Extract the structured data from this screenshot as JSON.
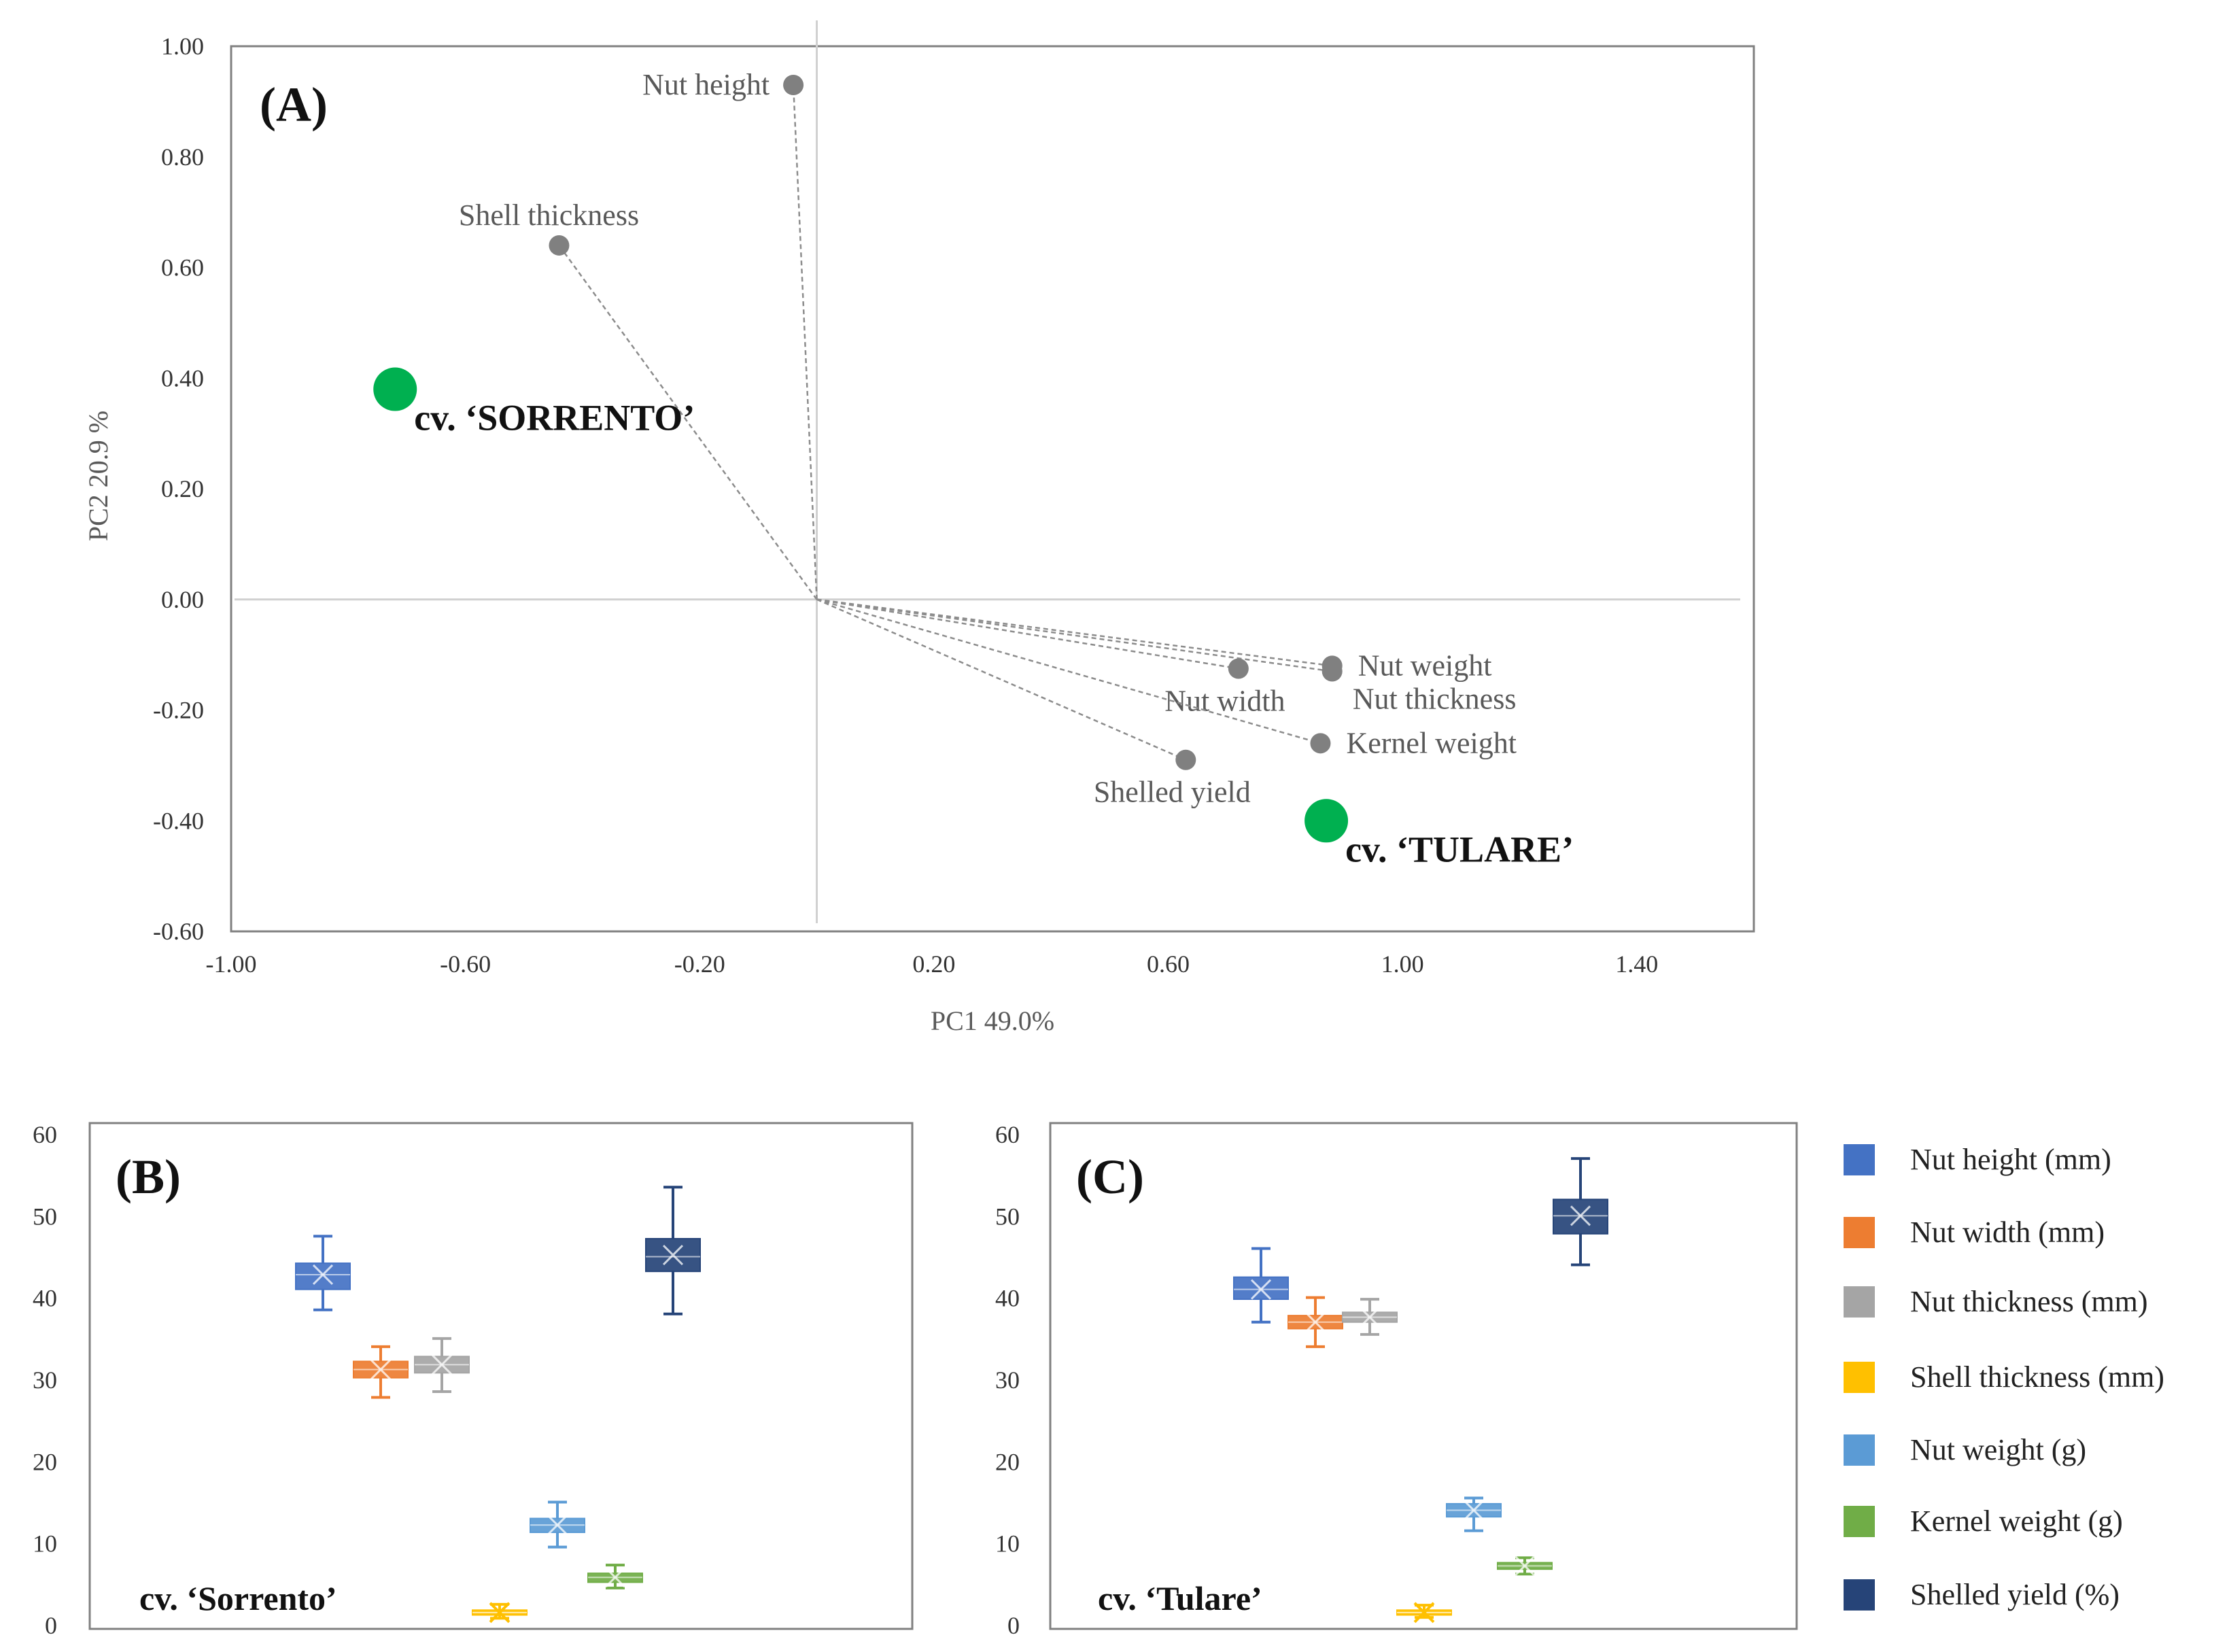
{
  "colors": {
    "nut_height": "#4472C4",
    "nut_width": "#ED7D31",
    "nut_thickness": "#A5A5A5",
    "shell_thickness": "#FFC000",
    "nut_weight": "#5B9BD5",
    "kernel_weight": "#70AD47",
    "shelled_yield": "#264478",
    "cultivar_point": "#00B050",
    "loading_point": "#808080"
  },
  "chart_data": [
    {
      "panel": "(A)",
      "type": "scatter",
      "subtype": "PCA biplot",
      "xlabel": "PC1 49.0%",
      "ylabel": "PC2 20.9 %",
      "xlim": [
        -1.0,
        1.6
      ],
      "ylim": [
        -0.6,
        1.0
      ],
      "x_ticks": [
        "-1.00",
        "-0.60",
        "-0.20",
        "0.20",
        "0.60",
        "1.00",
        "1.40"
      ],
      "y_ticks": [
        "1.00",
        "0.80",
        "0.60",
        "0.40",
        "0.20",
        "0.00",
        "-0.20",
        "-0.40",
        "-0.60"
      ],
      "grid": false,
      "loadings": [
        {
          "name": "Nut height",
          "x": -0.04,
          "y": 0.93,
          "label_pos": "left"
        },
        {
          "name": "Shell thickness",
          "x": -0.44,
          "y": 0.64,
          "label_pos": "above"
        },
        {
          "name": "Nut weight",
          "x": 0.88,
          "y": -0.12,
          "label_pos": "right"
        },
        {
          "name": "Nut thickness",
          "x": 0.88,
          "y": -0.13,
          "label_pos": "right-below"
        },
        {
          "name": "Nut width",
          "x": 0.72,
          "y": -0.125,
          "label_pos": "below"
        },
        {
          "name": "Kernel weight",
          "x": 0.86,
          "y": -0.26,
          "label_pos": "right"
        },
        {
          "name": "Shelled yield",
          "x": 0.63,
          "y": -0.29,
          "label_pos": "below"
        }
      ],
      "scores": [
        {
          "name": "cv. ‘SORRENTO’",
          "x": -0.72,
          "y": 0.38
        },
        {
          "name": "cv. ‘TULARE’",
          "x": 0.87,
          "y": -0.4
        }
      ]
    },
    {
      "panel": "(B)",
      "type": "box",
      "caption": "cv. ‘Sorrento’",
      "ylim": [
        0,
        60
      ],
      "y_ticks": [
        "60",
        "50",
        "40",
        "30",
        "20",
        "10",
        "0"
      ],
      "series": [
        {
          "name": "Nut height (mm)",
          "key": "nut_height",
          "min": 38.5,
          "q1": 41.0,
          "median": 42.8,
          "mean": 42.8,
          "q3": 44.2,
          "max": 47.5
        },
        {
          "name": "Nut width (mm)",
          "key": "nut_width",
          "min": 27.8,
          "q1": 30.2,
          "median": 31.2,
          "mean": 31.2,
          "q3": 32.2,
          "max": 34.0
        },
        {
          "name": "Nut thickness (mm)",
          "key": "nut_thickness",
          "min": 28.5,
          "q1": 30.8,
          "median": 31.8,
          "mean": 31.8,
          "q3": 32.8,
          "max": 35.0
        },
        {
          "name": "Shell thickness (mm)",
          "key": "shell_thickness",
          "min": 0.8,
          "q1": 1.2,
          "median": 1.5,
          "mean": 1.5,
          "q3": 1.8,
          "max": 2.5
        },
        {
          "name": "Nut weight (g)",
          "key": "nut_weight",
          "min": 9.5,
          "q1": 11.3,
          "median": 12.2,
          "mean": 12.2,
          "q3": 13.0,
          "max": 15.0
        },
        {
          "name": "Kernel weight (g)",
          "key": "kernel_weight",
          "min": 4.5,
          "q1": 5.2,
          "median": 5.8,
          "mean": 5.8,
          "q3": 6.3,
          "max": 7.3
        },
        {
          "name": "Shelled yield (%)",
          "key": "shelled_yield",
          "min": 38.0,
          "q1": 43.2,
          "median": 45.0,
          "mean": 45.2,
          "q3": 47.2,
          "max": 53.5
        }
      ]
    },
    {
      "panel": "(C)",
      "type": "box",
      "caption": "cv. ‘Tulare’",
      "ylim": [
        0,
        60
      ],
      "y_ticks": [
        "60",
        "50",
        "40",
        "30",
        "20",
        "10",
        "0"
      ],
      "series": [
        {
          "name": "Nut height (mm)",
          "key": "nut_height",
          "min": 37.0,
          "q1": 39.8,
          "median": 41.0,
          "mean": 41.0,
          "q3": 42.5,
          "max": 46.0
        },
        {
          "name": "Nut width (mm)",
          "key": "nut_width",
          "min": 34.0,
          "q1": 36.2,
          "median": 37.0,
          "mean": 37.0,
          "q3": 37.8,
          "max": 40.0
        },
        {
          "name": "Nut thickness (mm)",
          "key": "nut_thickness",
          "min": 35.5,
          "q1": 37.0,
          "median": 37.6,
          "mean": 37.6,
          "q3": 38.2,
          "max": 39.8
        },
        {
          "name": "Shell thickness (mm)",
          "key": "shell_thickness",
          "min": 0.9,
          "q1": 1.2,
          "median": 1.5,
          "mean": 1.5,
          "q3": 1.8,
          "max": 2.4
        },
        {
          "name": "Nut weight (g)",
          "key": "nut_weight",
          "min": 11.5,
          "q1": 13.2,
          "median": 14.0,
          "mean": 14.0,
          "q3": 14.8,
          "max": 15.5
        },
        {
          "name": "Kernel weight (g)",
          "key": "kernel_weight",
          "min": 6.2,
          "q1": 6.8,
          "median": 7.2,
          "mean": 7.2,
          "q3": 7.6,
          "max": 8.2
        },
        {
          "name": "Shelled yield (%)",
          "key": "shelled_yield",
          "min": 44.0,
          "q1": 47.8,
          "median": 50.0,
          "mean": 50.0,
          "q3": 52.0,
          "max": 57.0
        }
      ]
    }
  ],
  "legend": [
    {
      "label": "Nut height (mm)",
      "key": "nut_height"
    },
    {
      "label": "Nut width (mm)",
      "key": "nut_width"
    },
    {
      "label": "Nut thickness (mm)",
      "key": "nut_thickness"
    },
    {
      "label": "Shell thickness (mm)",
      "key": "shell_thickness"
    },
    {
      "label": "Nut weight (g)",
      "key": "nut_weight"
    },
    {
      "label": "Kernel weight (g)",
      "key": "kernel_weight"
    },
    {
      "label": "Shelled yield (%)",
      "key": "shelled_yield"
    }
  ]
}
